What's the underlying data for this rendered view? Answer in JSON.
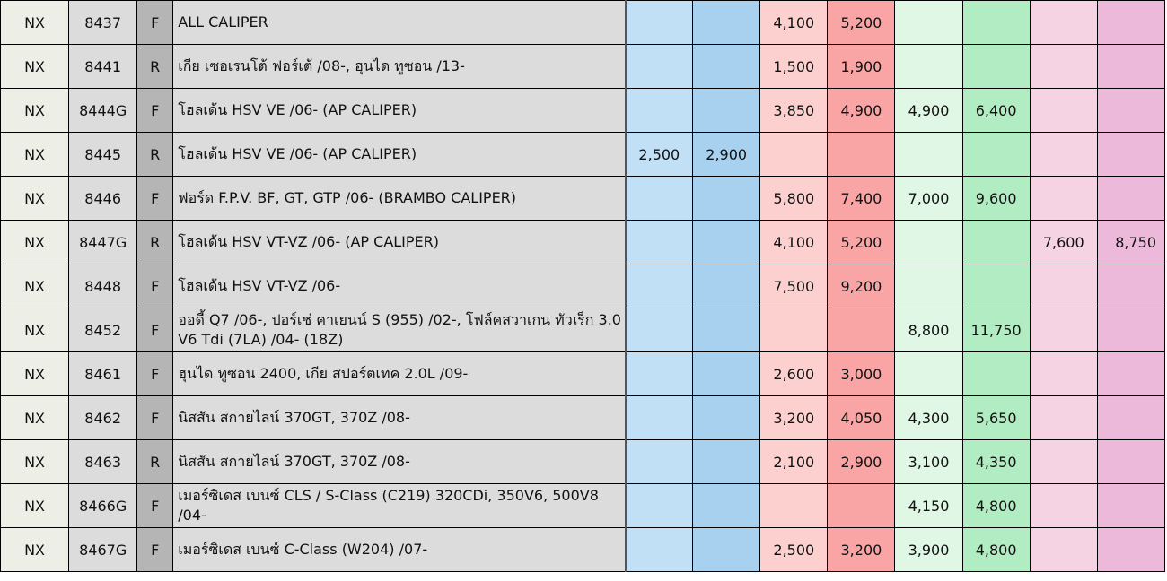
{
  "rows": [
    {
      "brand": "NX",
      "code": "8437",
      "side": "F",
      "desc": "ALL CALIPER",
      "b1": "",
      "b2": "",
      "r1": "4,100",
      "r2": "5,200",
      "g1": "",
      "g2": "",
      "p1": "",
      "p2": ""
    },
    {
      "brand": "NX",
      "code": "8441",
      "side": "R",
      "desc": "เกีย เซอเรนโต้ ฟอร์เต้ /08-, ฮุนได ทูซอน /13-",
      "b1": "",
      "b2": "",
      "r1": "1,500",
      "r2": "1,900",
      "g1": "",
      "g2": "",
      "p1": "",
      "p2": ""
    },
    {
      "brand": "NX",
      "code": "8444G",
      "side": "F",
      "desc": "โฮลเด้น HSV VE /06- (AP CALIPER)",
      "b1": "",
      "b2": "",
      "r1": "3,850",
      "r2": "4,900",
      "g1": "4,900",
      "g2": "6,400",
      "p1": "",
      "p2": ""
    },
    {
      "brand": "NX",
      "code": "8445",
      "side": "R",
      "desc": "โฮลเด้น HSV VE /06- (AP CALIPER)",
      "b1": "2,500",
      "b2": "2,900",
      "r1": "",
      "r2": "",
      "g1": "",
      "g2": "",
      "p1": "",
      "p2": ""
    },
    {
      "brand": "NX",
      "code": "8446",
      "side": "F",
      "desc": "ฟอร์ด F.P.V. BF, GT, GTP /06- (BRAMBO CALIPER)",
      "b1": "",
      "b2": "",
      "r1": "5,800",
      "r2": "7,400",
      "g1": "7,000",
      "g2": "9,600",
      "p1": "",
      "p2": ""
    },
    {
      "brand": "NX",
      "code": "8447G",
      "side": "R",
      "desc": "โฮลเด้น HSV VT-VZ /06- (AP CALIPER)",
      "b1": "",
      "b2": "",
      "r1": "4,100",
      "r2": "5,200",
      "g1": "",
      "g2": "",
      "p1": "7,600",
      "p2": "8,750"
    },
    {
      "brand": "NX",
      "code": "8448",
      "side": "F",
      "desc": "โฮลเด้น HSV VT-VZ /06-",
      "b1": "",
      "b2": "",
      "r1": "7,500",
      "r2": "9,200",
      "g1": "",
      "g2": "",
      "p1": "",
      "p2": ""
    },
    {
      "brand": "NX",
      "code": "8452",
      "side": "F",
      "desc": "ออดี้ Q7 /06-, ปอร์เช่ คาเยนน์ S (955) /02-, โฟล์คสวาเกน ทัวเร็ก 3.0 V6 Tdi (7LA) /04- (18Z)",
      "b1": "",
      "b2": "",
      "r1": "",
      "r2": "",
      "g1": "8,800",
      "g2": "11,750",
      "p1": "",
      "p2": ""
    },
    {
      "brand": "NX",
      "code": "8461",
      "side": "F",
      "desc": "ฮุนได ทูซอน 2400, เกีย สปอร์ตเทค 2.0L /09-",
      "b1": "",
      "b2": "",
      "r1": "2,600",
      "r2": "3,000",
      "g1": "",
      "g2": "",
      "p1": "",
      "p2": ""
    },
    {
      "brand": "NX",
      "code": "8462",
      "side": "F",
      "desc": "นิสสัน สกายไลน์ 370GT, 370Z /08-",
      "b1": "",
      "b2": "",
      "r1": "3,200",
      "r2": "4,050",
      "g1": "4,300",
      "g2": "5,650",
      "p1": "",
      "p2": ""
    },
    {
      "brand": "NX",
      "code": "8463",
      "side": "R",
      "desc": "นิสสัน สกายไลน์ 370GT, 370Z /08-",
      "b1": "",
      "b2": "",
      "r1": "2,100",
      "r2": "2,900",
      "g1": "3,100",
      "g2": "4,350",
      "p1": "",
      "p2": ""
    },
    {
      "brand": "NX",
      "code": "8466G",
      "side": "F",
      "desc": "เมอร์ซิเดส เบนซ์ CLS / S-Class (C219) 320CDi, 350V6, 500V8 /04-",
      "b1": "",
      "b2": "",
      "r1": "",
      "r2": "",
      "g1": "4,150",
      "g2": "4,800",
      "p1": "",
      "p2": ""
    },
    {
      "brand": "NX",
      "code": "8467G",
      "side": "F",
      "desc": "เมอร์ซิเดส เบนซ์ C-Class (W204) /07-",
      "b1": "",
      "b2": "",
      "r1": "2,500",
      "r2": "3,200",
      "g1": "3,900",
      "g2": "4,800",
      "p1": "",
      "p2": ""
    }
  ]
}
